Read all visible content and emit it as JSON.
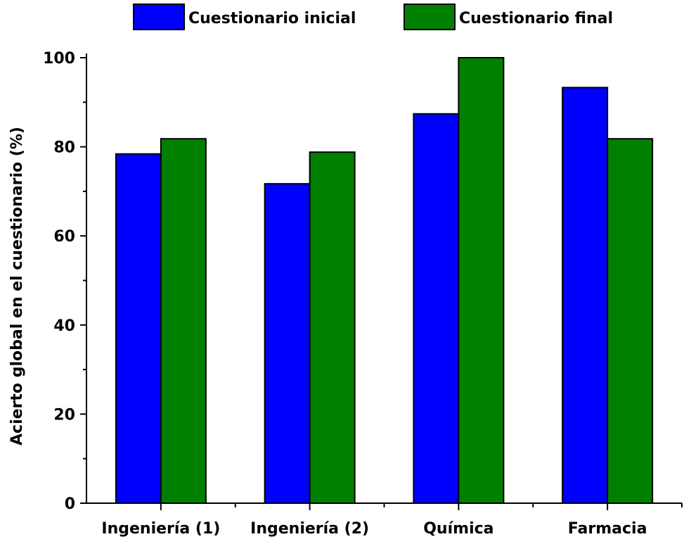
{
  "chart_data": {
    "type": "bar",
    "categories": [
      "Ingeniería (1)",
      "Ingeniería (2)",
      "Química",
      "Farmacia"
    ],
    "series": [
      {
        "name": "Cuestionario inicial",
        "color": "#0000FF",
        "values": [
          78.4,
          71.7,
          87.4,
          93.3
        ]
      },
      {
        "name": "Cuestionario final",
        "color": "#008000",
        "values": [
          81.8,
          78.8,
          100,
          81.8
        ]
      }
    ],
    "ylabel": "Acierto global en el cuestionario (%)",
    "xlabel": "",
    "ylim": [
      0,
      100
    ],
    "yticks": [
      0,
      20,
      40,
      60,
      80,
      100
    ],
    "y_minor_step": 10,
    "legend_position": "top",
    "grid": false
  }
}
